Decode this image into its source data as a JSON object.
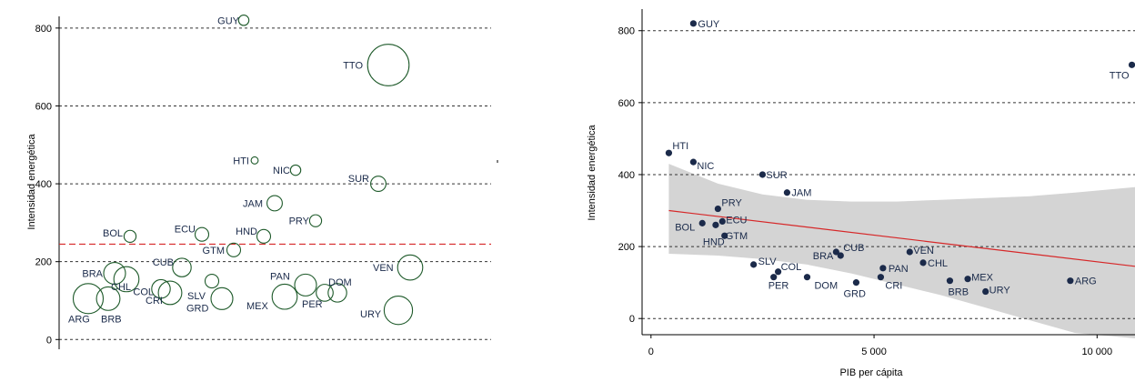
{
  "chart_data": [
    {
      "type": "scatter",
      "subtype": "bubble",
      "ylabel": "Intensidad energética",
      "ylim": [
        -25,
        830
      ],
      "yticks": [
        0,
        200,
        400,
        600,
        800
      ],
      "grid": true,
      "reference_line": 245,
      "colors": {
        "marker": "#1e5a2a",
        "reference": "#d62728",
        "grid": "#333333"
      },
      "points": [
        {
          "label": "GUY",
          "y": 820,
          "size": 3
        },
        {
          "label": "TTO",
          "y": 705,
          "size": 22
        },
        {
          "label": "HTI",
          "y": 460,
          "size": 1
        },
        {
          "label": "NIC",
          "y": 435,
          "size": 3
        },
        {
          "label": "SUR",
          "y": 400,
          "size": 6
        },
        {
          "label": "JAM",
          "y": 350,
          "size": 6
        },
        {
          "label": "PRY",
          "y": 305,
          "size": 4
        },
        {
          "label": "BOL",
          "y": 265,
          "size": 4
        },
        {
          "label": "ECU",
          "y": 270,
          "size": 5
        },
        {
          "label": "HND",
          "y": 265,
          "size": 5
        },
        {
          "label": "GTM",
          "y": 230,
          "size": 5
        },
        {
          "label": "CUB",
          "y": 185,
          "size": 8
        },
        {
          "label": "BRA",
          "y": 170,
          "size": 10
        },
        {
          "label": "CHL",
          "y": 155,
          "size": 12
        },
        {
          "label": "COL",
          "y": 130,
          "size": 8
        },
        {
          "label": "CRI",
          "y": 120,
          "size": 11
        },
        {
          "label": "SLV",
          "y": 150,
          "size": 5
        },
        {
          "label": "GRD",
          "y": 105,
          "size": 10
        },
        {
          "label": "ARG",
          "y": 105,
          "size": 15
        },
        {
          "label": "BRB",
          "y": 105,
          "size": 11
        },
        {
          "label": "PAN",
          "y": 140,
          "size": 10
        },
        {
          "label": "MEX",
          "y": 110,
          "size": 12
        },
        {
          "label": "PER",
          "y": 120,
          "size": 7
        },
        {
          "label": "DOM",
          "y": 120,
          "size": 8
        },
        {
          "label": "VEN",
          "y": 185,
          "size": 12
        },
        {
          "label": "URY",
          "y": 75,
          "size": 14
        }
      ]
    },
    {
      "type": "scatter",
      "xlabel": "PIB per cápita",
      "ylabel": "Intensidad energética",
      "xlim": [
        -200,
        10850
      ],
      "ylim": [
        -45,
        860
      ],
      "xticks": [
        0,
        5000,
        10000
      ],
      "xtick_labels": [
        "0",
        "5 000",
        "10 000"
      ],
      "yticks": [
        0,
        200,
        400,
        600,
        800
      ],
      "grid": true,
      "fit": {
        "x": [
          400,
          10850
        ],
        "y": [
          300,
          145
        ]
      },
      "confidence_band": {
        "x": [
          400,
          1500,
          2500,
          3500,
          4500,
          5500,
          6500,
          7500,
          8500,
          9500,
          10850
        ],
        "upper": [
          430,
          375,
          345,
          330,
          325,
          325,
          330,
          335,
          340,
          350,
          365
        ],
        "lower": [
          180,
          175,
          165,
          150,
          125,
          95,
          65,
          30,
          -5,
          -40,
          -55
        ]
      },
      "colors": {
        "marker": "#1b2a4a",
        "fit": "#d62728",
        "band": "#d4d4d4",
        "grid": "#333333"
      },
      "points": [
        {
          "label": "GUY",
          "x": 950,
          "y": 820
        },
        {
          "label": "TTO",
          "x": 10780,
          "y": 705
        },
        {
          "label": "HTI",
          "x": 400,
          "y": 460
        },
        {
          "label": "NIC",
          "x": 950,
          "y": 435
        },
        {
          "label": "SUR",
          "x": 2500,
          "y": 400
        },
        {
          "label": "JAM",
          "x": 3050,
          "y": 350
        },
        {
          "label": "PRY",
          "x": 1500,
          "y": 305
        },
        {
          "label": "BOL",
          "x": 1150,
          "y": 265
        },
        {
          "label": "ECU",
          "x": 1600,
          "y": 270
        },
        {
          "label": "HND",
          "x": 1450,
          "y": 260
        },
        {
          "label": "GTM",
          "x": 1650,
          "y": 230
        },
        {
          "label": "SLV",
          "x": 2300,
          "y": 150
        },
        {
          "label": "COL",
          "x": 2850,
          "y": 130
        },
        {
          "label": "PER",
          "x": 2750,
          "y": 115
        },
        {
          "label": "DOM",
          "x": 3500,
          "y": 115
        },
        {
          "label": "BRA",
          "x": 4150,
          "y": 185
        },
        {
          "label": "CUB",
          "x": 4250,
          "y": 175
        },
        {
          "label": "GRD",
          "x": 4600,
          "y": 100
        },
        {
          "label": "PAN",
          "x": 5200,
          "y": 140
        },
        {
          "label": "CRI",
          "x": 5150,
          "y": 115
        },
        {
          "label": "VEN",
          "x": 5800,
          "y": 185
        },
        {
          "label": "CHL",
          "x": 6100,
          "y": 155
        },
        {
          "label": "BRB",
          "x": 6700,
          "y": 105
        },
        {
          "label": "MEX",
          "x": 7100,
          "y": 110
        },
        {
          "label": "URY",
          "x": 7500,
          "y": 75
        },
        {
          "label": "ARG",
          "x": 9400,
          "y": 105
        }
      ]
    }
  ]
}
